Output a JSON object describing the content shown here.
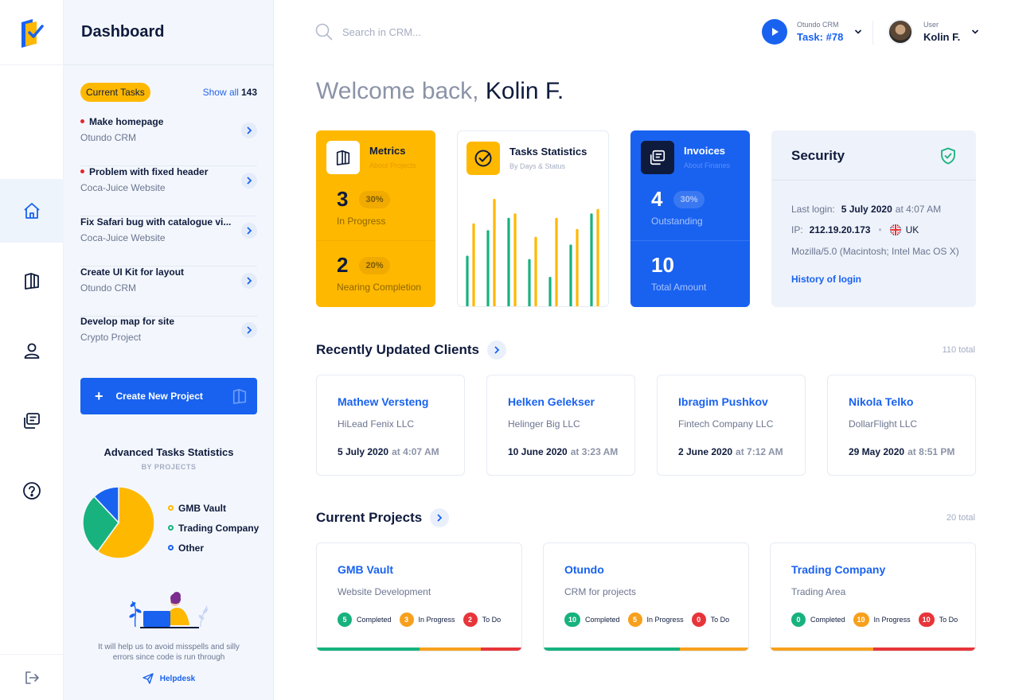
{
  "sidebar": {
    "nav": [
      "home-icon",
      "map-icon",
      "user-icon",
      "invoices-icon",
      "help-icon"
    ],
    "logout": "logout-icon"
  },
  "panel": {
    "title": "Dashboard",
    "current_tasks_label": "Current Tasks",
    "show_all_label": "Show all",
    "show_all_count": "143",
    "tasks": [
      {
        "title": "Make homepage",
        "project": "Otundo CRM",
        "urgent": true
      },
      {
        "title": "Problem with fixed header",
        "project": "Coca-Juice Website",
        "urgent": true
      },
      {
        "title": "Fix Safari bug with catalogue vi...",
        "project": "Coca-Juice Website",
        "urgent": false
      },
      {
        "title": "Create UI Kit for layout",
        "project": "Otundo CRM",
        "urgent": false
      },
      {
        "title": "Develop map for site",
        "project": "Crypto Project",
        "urgent": false
      }
    ],
    "create_button": "Create New Project",
    "adv_title": "Advanced Tasks Statistics",
    "adv_sub": "BY PROJECTS",
    "pie": [
      {
        "name": "GMB Vault",
        "value": 60,
        "color": "#ffb800"
      },
      {
        "name": "Trading Company",
        "value": 28,
        "color": "#17b27e"
      },
      {
        "name": "Other",
        "value": 12,
        "color": "#1962f0"
      }
    ],
    "help_text": "It will help us to avoid misspells and silly errors since code is run through",
    "helpdesk": "Helpdesk"
  },
  "topbar": {
    "search_placeholder": "Search in CRM...",
    "task_small": "Otundo CRM",
    "task_label": "Task: #78",
    "user_small": "User",
    "user_name": "Kolin F."
  },
  "welcome": {
    "prefix": "Welcome back,",
    "name": "Kolin F."
  },
  "metrics": {
    "title": "Metrics",
    "subtitle": "About Projects",
    "stat1": {
      "value": "3",
      "pct": "30%",
      "label": "In Progress"
    },
    "stat2": {
      "value": "2",
      "pct": "20%",
      "label": "Nearing Completion"
    }
  },
  "task_stats": {
    "title": "Tasks Statistics",
    "subtitle": "By Days & Status",
    "bars": [
      [
        0.45,
        0.74
      ],
      [
        0.68,
        0.96
      ],
      [
        0.79,
        0.83
      ],
      [
        0.42,
        0.62
      ],
      [
        0.26,
        0.79
      ],
      [
        0.55,
        0.69
      ],
      [
        0.83,
        0.87
      ]
    ]
  },
  "invoices": {
    "title": "Invoices",
    "subtitle": "About Finanes",
    "stat1": {
      "value": "4",
      "pct": "30%",
      "label": "Outstanding"
    },
    "stat2": {
      "value": "10",
      "label": "Total Amount"
    }
  },
  "security": {
    "title": "Security",
    "last_login_label": "Last login:",
    "last_login_date": "5 July 2020",
    "last_login_time": "at 4:07 AM",
    "ip_label": "IP:",
    "ip": "212.19.20.173",
    "country": "UK",
    "agent": "Mozilla/5.0 (Macintosh; Intel Mac OS X)",
    "history_link": "History of login"
  },
  "clients": {
    "title": "Recently Updated Clients",
    "total": "110 total",
    "items": [
      {
        "name": "Mathew Versteng",
        "company": "HiLead Fenix LLC",
        "date": "5 July 2020",
        "time": "at 4:07 AM"
      },
      {
        "name": "Helken Gelekser",
        "company": "Helinger Big LLC",
        "date": "10 June 2020",
        "time": "at 3:23 AM"
      },
      {
        "name": "Ibragim Pushkov",
        "company": "Fintech Company LLC",
        "date": "2 June 2020",
        "time": "at 7:12 AM"
      },
      {
        "name": "Nikola Telko",
        "company": "DollarFlight LLC",
        "date": "29 May 2020",
        "time": "at 8:51 PM"
      }
    ]
  },
  "projects": {
    "title": "Current Projects",
    "total": "20 total",
    "completed_label": "Completed",
    "progress_label": "In Progress",
    "todo_label": "To Do",
    "items": [
      {
        "name": "GMB Vault",
        "desc": "Website Development",
        "completed": "5",
        "progress": "3",
        "todo": "2"
      },
      {
        "name": "Otundo",
        "desc": "CRM for projects",
        "completed": "10",
        "progress": "5",
        "todo": "0"
      },
      {
        "name": "Trading Company",
        "desc": "Trading Area",
        "completed": "0",
        "progress": "10",
        "todo": "10"
      }
    ]
  },
  "colors": {
    "accent": "#1962f0",
    "yellow": "#ffb800",
    "green": "#17b27e",
    "red": "#e7353a",
    "orange": "#f7a01d"
  }
}
